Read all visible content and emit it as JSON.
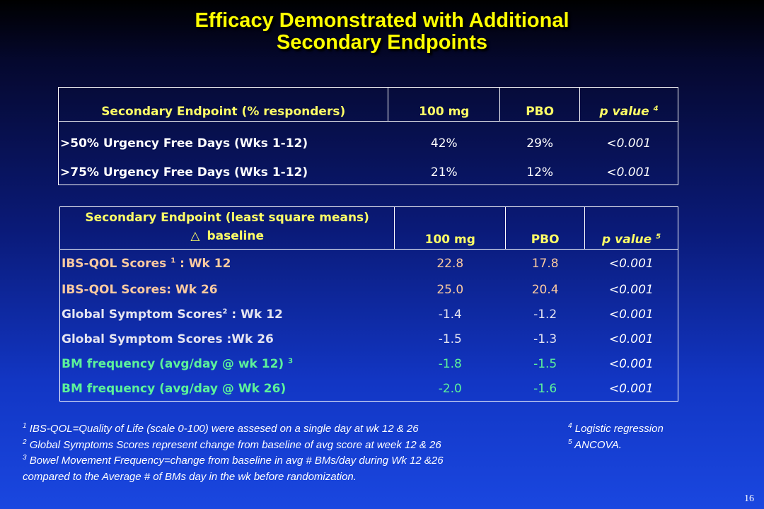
{
  "title": {
    "line1": "Efficacy Demonstrated with Additional",
    "line2": "Secondary Endpoints"
  },
  "table1": {
    "headers": {
      "endpoint": "Secondary Endpoint (% responders)",
      "dose": "100 mg",
      "pbo": "PBO",
      "pvalue": "p value",
      "pvalue_ref": "4"
    },
    "rows": [
      {
        "label": ">50% Urgency Free Days   (Wks 1-12)",
        "dose": "42%",
        "pbo": "29%",
        "p": "<0.001"
      },
      {
        "label": ">75% Urgency Free Days (Wks 1-12)",
        "dose": "21%",
        "pbo": "12%",
        "p": "<0.001"
      }
    ]
  },
  "table2": {
    "headers": {
      "endpoint_line1": "Secondary Endpoint (least square means)",
      "delta_symbol": "△",
      "endpoint_line2": "baseline",
      "dose": "100 mg",
      "pbo": "PBO",
      "pvalue": "p value",
      "pvalue_ref": "5"
    },
    "rows": [
      {
        "label": "IBS-QOL  Scores",
        "ref": "1",
        "suffix": " : Wk 12",
        "dose": "22.8",
        "pbo": "17.8",
        "p": "<0.001",
        "color": "#fbcaa0"
      },
      {
        "label": "IBS-QOL  Scores: Wk 26",
        "ref": "",
        "suffix": "",
        "dose": "25.0",
        "pbo": "20.4",
        "p": "<0.001",
        "color": "#fbcaa0"
      },
      {
        "label": "Global Symptom Scores",
        "ref": "2",
        "suffix": " : Wk 12",
        "dose": "-1.4",
        "pbo": "-1.2",
        "p": "<0.001",
        "color": "#e4e4f0"
      },
      {
        "label": "Global Symptom Scores :Wk 26",
        "ref": "",
        "suffix": "",
        "dose": "-1.5",
        "pbo": "-1.3",
        "p": "<0.001",
        "color": "#e4e4f0"
      },
      {
        "label": "BM frequency (avg/day @ wk 12)",
        "ref": "3",
        "suffix": "",
        "dose": "-1.8",
        "pbo": "-1.5",
        "p": "<0.001",
        "color": "#5cf29a"
      },
      {
        "label": "BM frequency  (avg/day @ Wk 26)",
        "ref": "",
        "suffix": "",
        "dose": "-2.0",
        "pbo": "-1.6",
        "p": "<0.001",
        "color": "#5cf29a"
      }
    ]
  },
  "footnotes": {
    "left": [
      {
        "ref": "1",
        "text": " IBS-QOL=Quality of Life (scale 0-100)  were assesed on  a single day at  wk 12 & 26"
      },
      {
        "ref": "2",
        "text": " Global Symptoms Scores represent  change from baseline of avg score at week 12 & 26"
      },
      {
        "ref": "3",
        "text": " Bowel Movement Frequency=change from baseline in avg # BMs/day during Wk 12 &26"
      },
      {
        "ref": "",
        "text": "compared to the Average # of BMs day in  the wk before randomization."
      }
    ],
    "right": [
      {
        "ref": "4",
        "text": " Logistic regression"
      },
      {
        "ref": "5",
        "text": " ANCOVA."
      }
    ]
  },
  "slide_number": "16"
}
